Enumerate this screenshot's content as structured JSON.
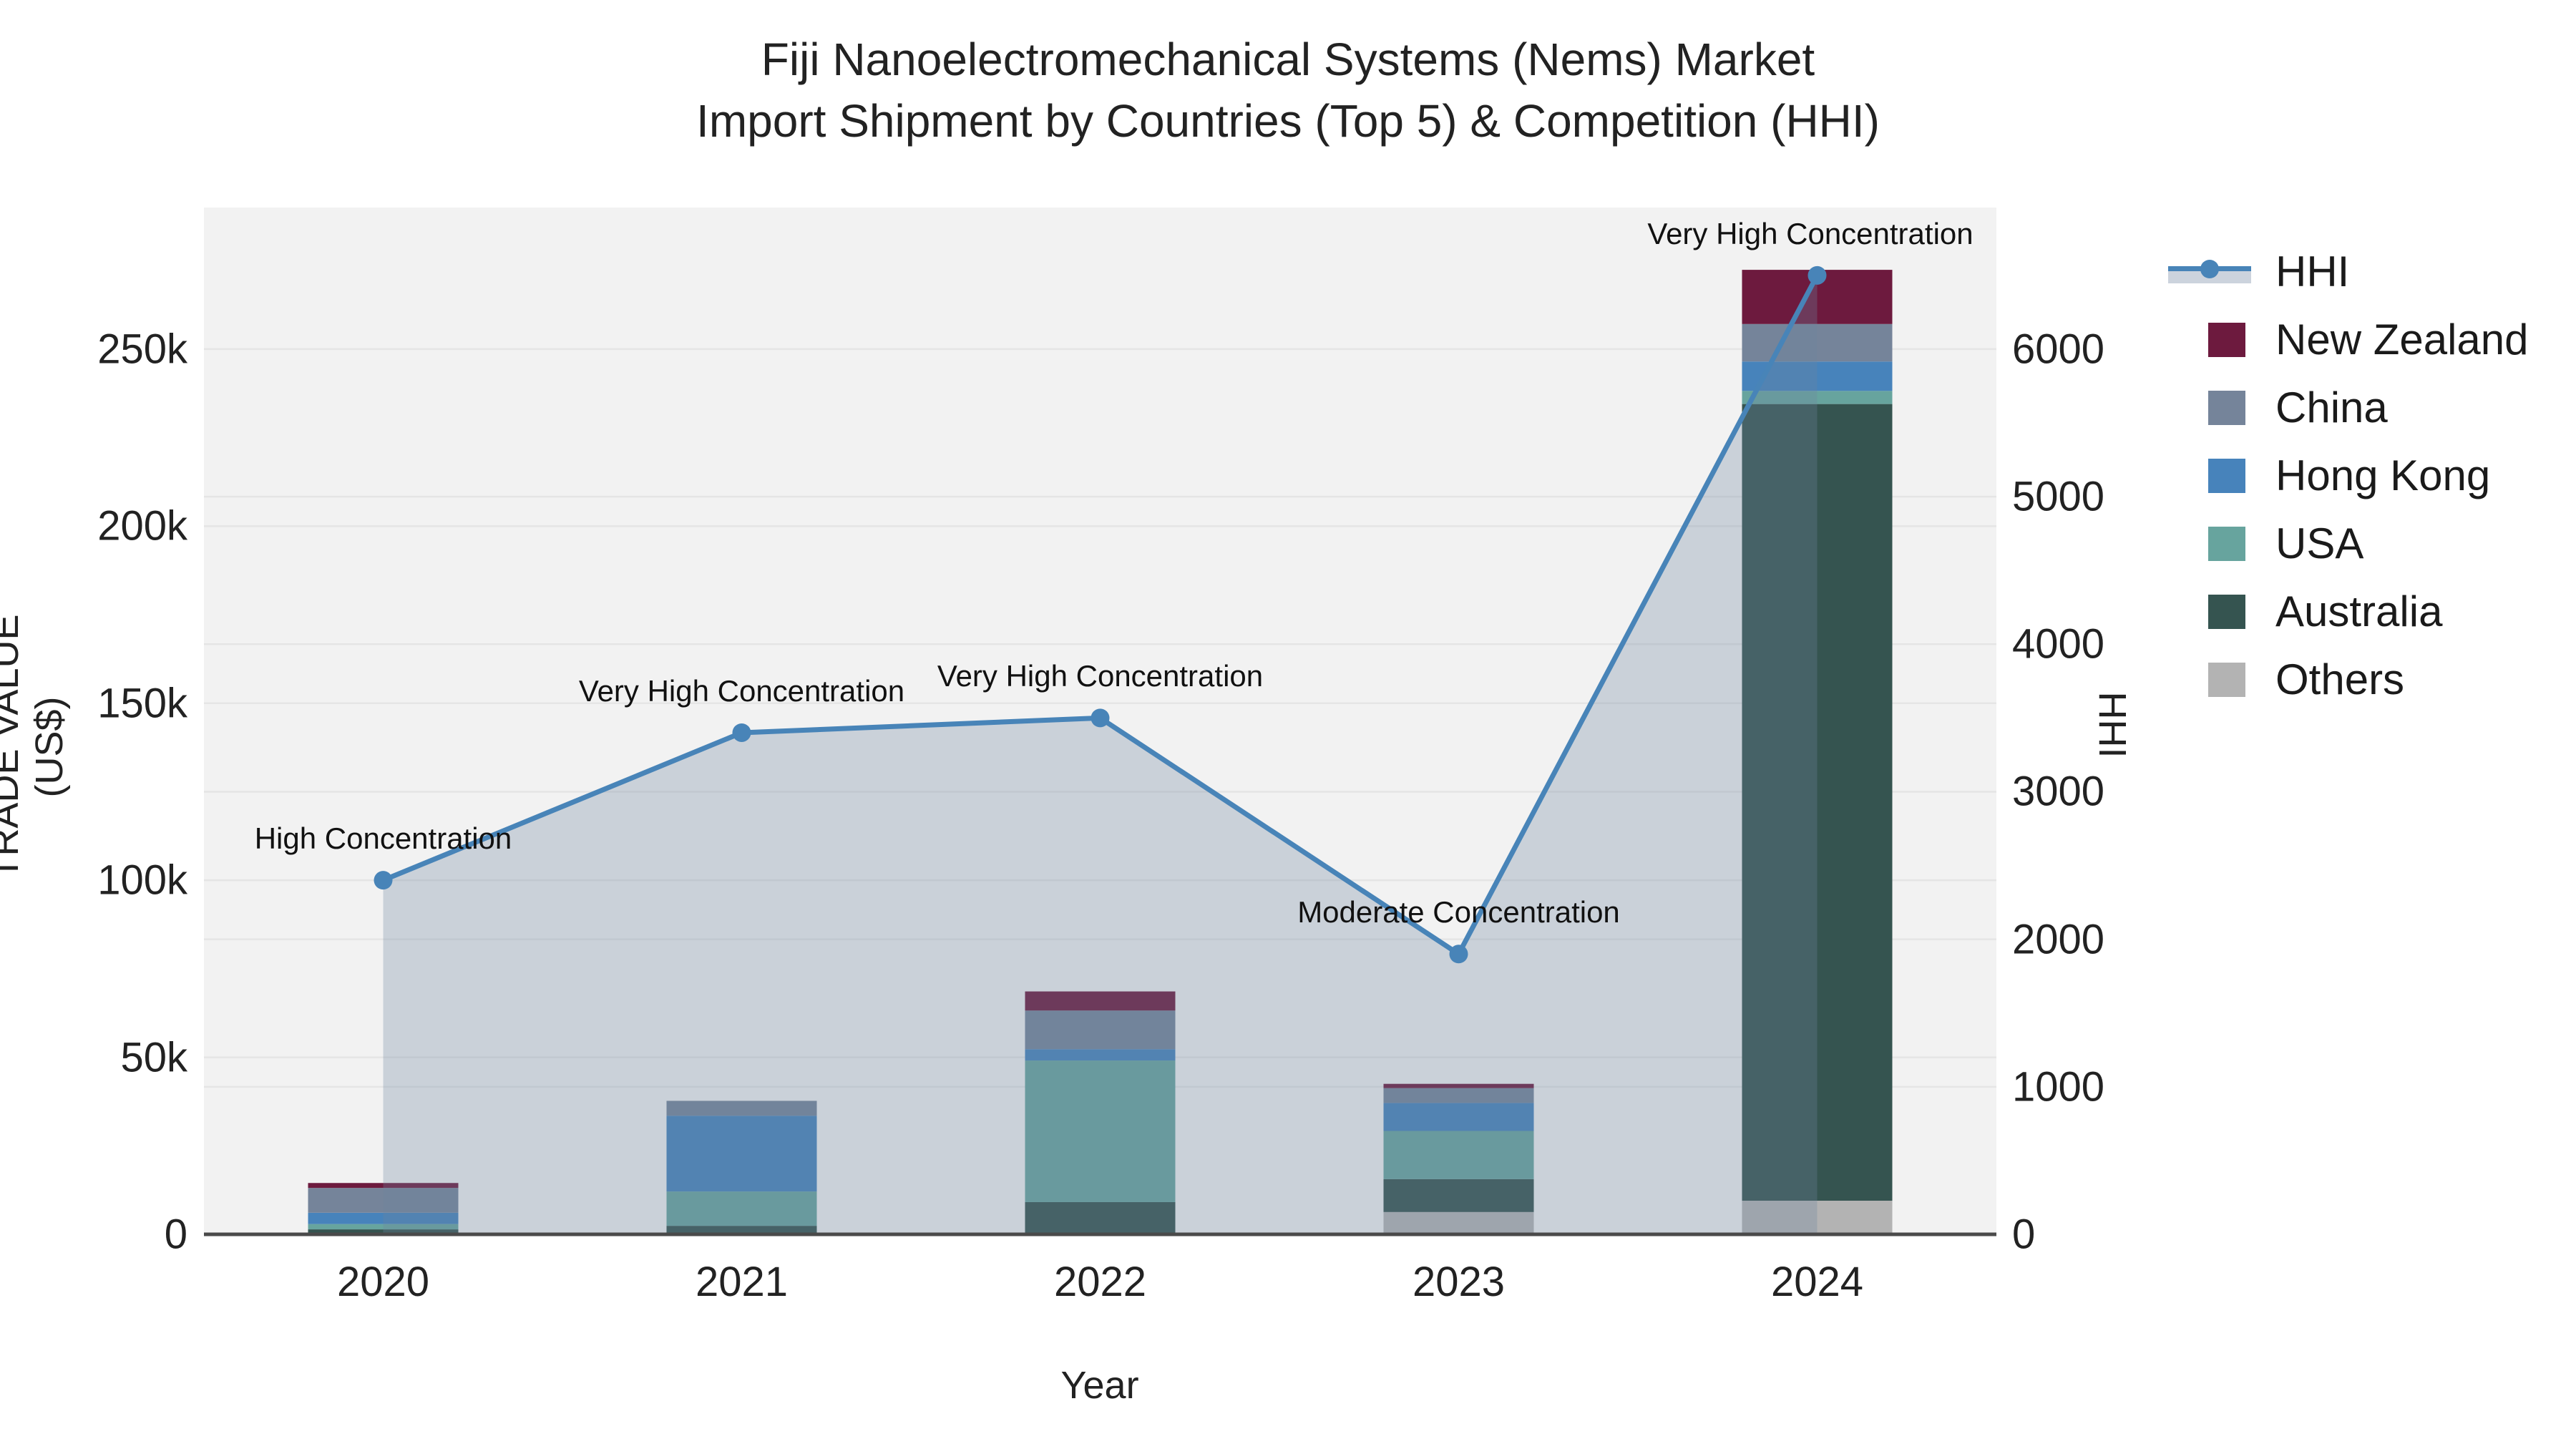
{
  "title": {
    "line1": "Fiji Nanoelectromechanical Systems (Nems) Market",
    "line2": "Import Shipment by Countries (Top 5) & Competition (HHI)"
  },
  "axes": {
    "x_title": "Year",
    "y_left_title": "TRADE VALUE (US$)",
    "y_right_title": "HHI",
    "x_ticks": [
      "2020",
      "2021",
      "2022",
      "2023",
      "2024"
    ],
    "y_left_ticks": [
      {
        "value": 0,
        "label": "0"
      },
      {
        "value": 50000,
        "label": "50k"
      },
      {
        "value": 100000,
        "label": "100k"
      },
      {
        "value": 150000,
        "label": "150k"
      },
      {
        "value": 200000,
        "label": "200k"
      },
      {
        "value": 250000,
        "label": "250k"
      }
    ],
    "y_right_ticks": [
      {
        "value": 0,
        "label": "0"
      },
      {
        "value": 1000,
        "label": "1000"
      },
      {
        "value": 2000,
        "label": "2000"
      },
      {
        "value": 3000,
        "label": "3000"
      },
      {
        "value": 4000,
        "label": "4000"
      },
      {
        "value": 5000,
        "label": "5000"
      },
      {
        "value": 6000,
        "label": "6000"
      }
    ]
  },
  "chart_data": {
    "type": "bar+line",
    "categories": [
      "2020",
      "2021",
      "2022",
      "2023",
      "2024"
    ],
    "y_left_label": "TRADE VALUE (US$)",
    "y_right_label": "HHI",
    "y_left_max": 290000,
    "y_right_max": 6960,
    "grid": true,
    "stack_order_bottom_to_top": [
      "Others",
      "Australia",
      "USA",
      "Hong Kong",
      "China",
      "New Zealand"
    ],
    "series": [
      {
        "name": "Others",
        "color": "#b3b3b3",
        "values": [
          500,
          300,
          0,
          6300,
          9500
        ]
      },
      {
        "name": "Australia",
        "color": "#355450",
        "values": [
          900,
          2100,
          9100,
          9300,
          225000
        ]
      },
      {
        "name": "USA",
        "color": "#67a49e",
        "values": [
          1500,
          9700,
          40000,
          13600,
          3700
        ]
      },
      {
        "name": "Hong Kong",
        "color": "#4783bb",
        "values": [
          3200,
          21400,
          3200,
          7900,
          8300
        ]
      },
      {
        "name": "China",
        "color": "#75849a",
        "values": [
          7000,
          4200,
          10900,
          4200,
          10600
        ]
      },
      {
        "name": "New Zealand",
        "color": "#6d1a3e",
        "values": [
          1400,
          0,
          5400,
          1200,
          15300
        ]
      }
    ],
    "hhi_line": {
      "name": "HHI",
      "color": "#4884b8",
      "fill_color": "rgba(110,132,160,0.30)",
      "values": [
        2400,
        3400,
        3500,
        1900,
        6500
      ]
    },
    "annotations": [
      {
        "year": "2020",
        "text": "High Concentration"
      },
      {
        "year": "2021",
        "text": "Very High Concentration"
      },
      {
        "year": "2022",
        "text": "Very High Concentration"
      },
      {
        "year": "2023",
        "text": "Moderate Concentration"
      },
      {
        "year": "2024",
        "text": "Very High Concentration"
      }
    ]
  },
  "legend": {
    "items": [
      {
        "name": "HHI",
        "kind": "line"
      },
      {
        "name": "New Zealand",
        "kind": "swatch",
        "color": "#6d1a3e"
      },
      {
        "name": "China",
        "kind": "swatch",
        "color": "#75849a"
      },
      {
        "name": "Hong Kong",
        "kind": "swatch",
        "color": "#4783bb"
      },
      {
        "name": "USA",
        "kind": "swatch",
        "color": "#67a49e"
      },
      {
        "name": "Australia",
        "kind": "swatch",
        "color": "#355450"
      },
      {
        "name": "Others",
        "kind": "swatch",
        "color": "#b3b3b3"
      }
    ]
  },
  "colors": {
    "figure_bg": "#ffffff",
    "plot_bg": "#f2f2f2",
    "gridline": "#e5e5e5",
    "axis_line": "#4a4a4a",
    "hhi_line": "#4884b8",
    "hhi_area": "rgba(110,132,160,0.30)",
    "legend_hhi_fill": "#ccd3dd",
    "text": "#222222"
  }
}
